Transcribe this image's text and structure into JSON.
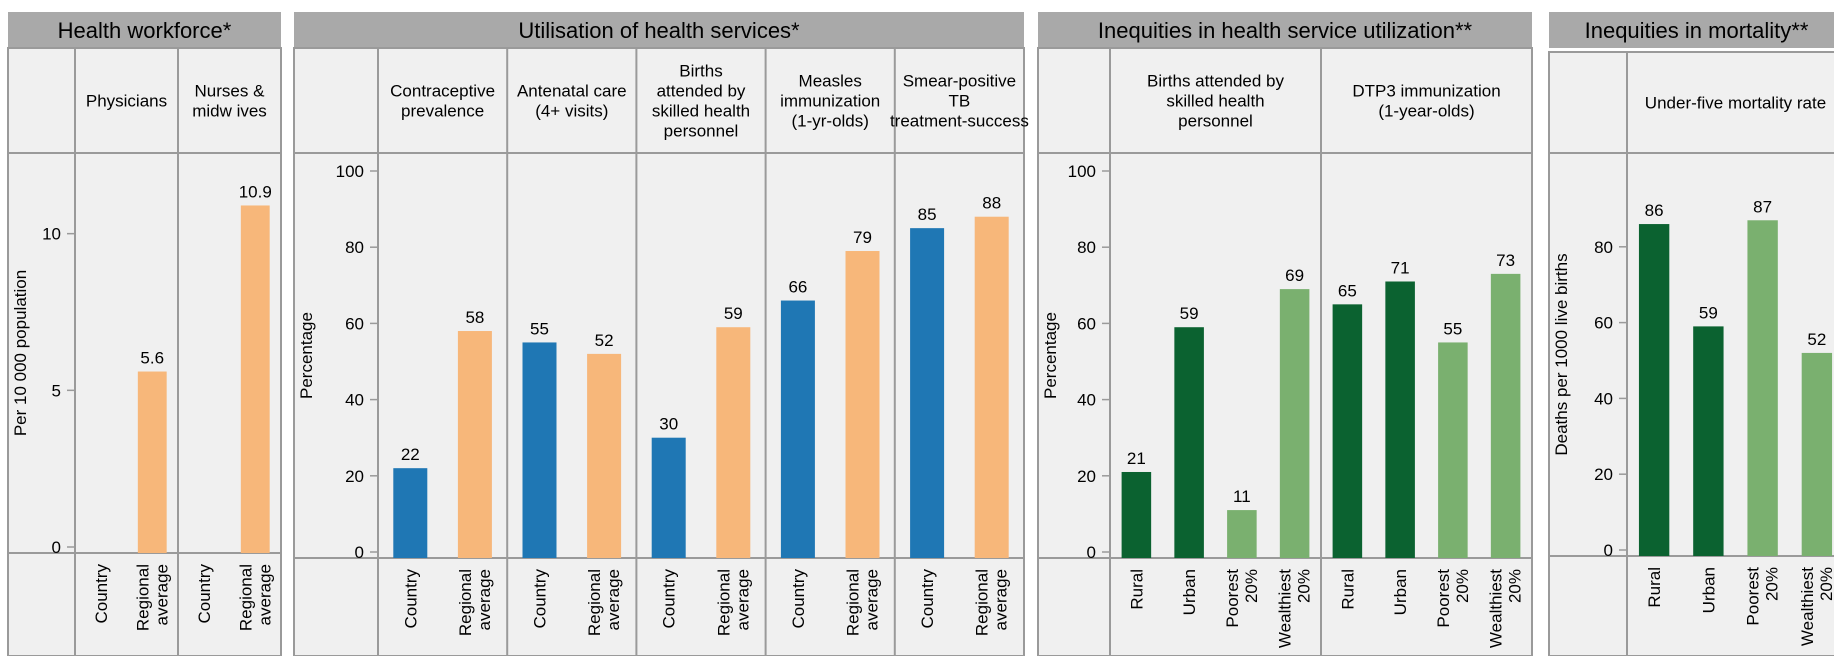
{
  "colors": {
    "country": "#1f77b4",
    "regional": "#f7b77a",
    "dark_green": "#0b6230",
    "light_green": "#7ab06f",
    "header_bg": "#a9a9a9",
    "panel_bg": "#f0f0f0",
    "border": "#9a9a9a"
  },
  "chart_data": [
    {
      "type": "bar",
      "title": "Health workforce*",
      "ylabel": "Per 10 000 population",
      "ylim": [
        0,
        12
      ],
      "yticks": [
        0,
        5,
        10
      ],
      "groups": [
        {
          "label": "Physicians",
          "categories": [
            "Country",
            "Regional average"
          ],
          "values": [
            null,
            5.6
          ],
          "labels": [
            "",
            "5.6"
          ],
          "colors": [
            "country",
            "regional"
          ]
        },
        {
          "label": "Nurses & midw ives",
          "categories": [
            "Country",
            "Regional average"
          ],
          "values": [
            null,
            10.9
          ],
          "labels": [
            "",
            "10.9"
          ],
          "colors": [
            "country",
            "regional"
          ]
        }
      ]
    },
    {
      "type": "bar",
      "title": "Utilisation of health services*",
      "ylabel": "Percentage",
      "ylim": [
        0,
        100
      ],
      "yticks": [
        0,
        20,
        40,
        60,
        80,
        100
      ],
      "groups": [
        {
          "label": "Contraceptive prevalence",
          "categories": [
            "Country",
            "Regional average"
          ],
          "values": [
            22,
            58
          ],
          "labels": [
            "22",
            "58"
          ],
          "colors": [
            "country",
            "regional"
          ]
        },
        {
          "label": "Antenatal care (4+ visits)",
          "categories": [
            "Country",
            "Regional average"
          ],
          "values": [
            55,
            52
          ],
          "labels": [
            "55",
            "52"
          ],
          "colors": [
            "country",
            "regional"
          ]
        },
        {
          "label": "Births attended by skilled health personnel",
          "categories": [
            "Country",
            "Regional average"
          ],
          "values": [
            30,
            59
          ],
          "labels": [
            "30",
            "59"
          ],
          "colors": [
            "country",
            "regional"
          ]
        },
        {
          "label": "Measles immunization (1-yr-olds)",
          "categories": [
            "Country",
            "Regional average"
          ],
          "values": [
            66,
            79
          ],
          "labels": [
            "66",
            "79"
          ],
          "colors": [
            "country",
            "regional"
          ]
        },
        {
          "label": "Smear-positive TB treatment-success",
          "categories": [
            "Country",
            "Regional average"
          ],
          "values": [
            85,
            88
          ],
          "labels": [
            "85",
            "88"
          ],
          "colors": [
            "country",
            "regional"
          ]
        }
      ]
    },
    {
      "type": "bar",
      "title": "Inequities in health service utilization**",
      "ylabel": "Percentage",
      "ylim": [
        0,
        100
      ],
      "yticks": [
        0,
        20,
        40,
        60,
        80,
        100
      ],
      "groups": [
        {
          "label": "Births attended by skilled health personnel",
          "categories": [
            "Rural",
            "Urban",
            "Poorest 20%",
            "Wealthiest 20%"
          ],
          "values": [
            21,
            59,
            11,
            69
          ],
          "labels": [
            "21",
            "59",
            "11",
            "69"
          ],
          "colors": [
            "dark_green",
            "dark_green",
            "light_green",
            "light_green"
          ]
        },
        {
          "label": "DTP3 immunization (1-year-olds)",
          "categories": [
            "Rural",
            "Urban",
            "Poorest 20%",
            "Wealthiest 20%"
          ],
          "values": [
            65,
            71,
            55,
            73
          ],
          "labels": [
            "65",
            "71",
            "55",
            "73"
          ],
          "colors": [
            "dark_green",
            "dark_green",
            "light_green",
            "light_green"
          ]
        }
      ]
    },
    {
      "type": "bar",
      "title": "Inequities in mortality**",
      "ylabel": "Deaths per 1000 live births",
      "ylim": [
        0,
        100
      ],
      "yticks": [
        0,
        20,
        40,
        60,
        80
      ],
      "groups": [
        {
          "label": "Under-five mortality rate",
          "categories": [
            "Rural",
            "Urban",
            "Poorest 20%",
            "Wealthiest 20%"
          ],
          "values": [
            86,
            59,
            87,
            52
          ],
          "labels": [
            "86",
            "59",
            "87",
            "52"
          ],
          "colors": [
            "dark_green",
            "dark_green",
            "light_green",
            "light_green"
          ]
        }
      ]
    }
  ]
}
